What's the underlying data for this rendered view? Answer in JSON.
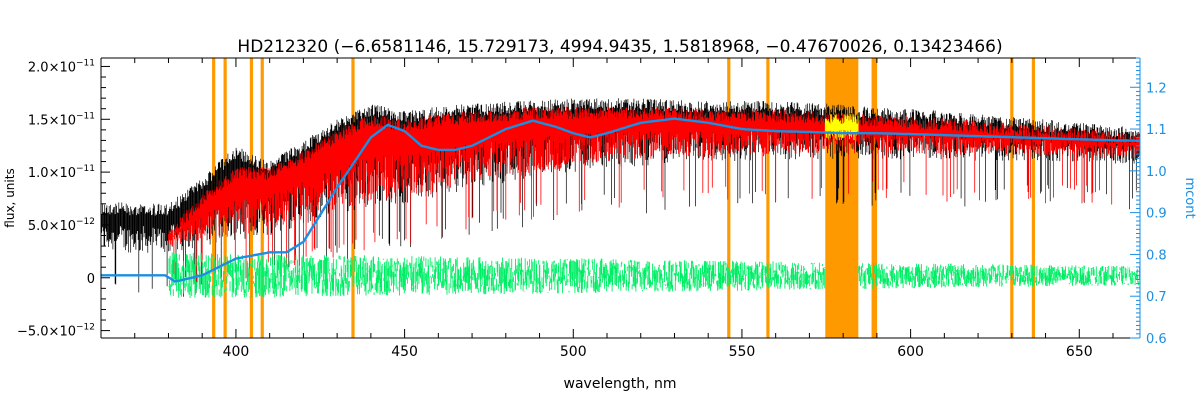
{
  "chart_data": {
    "type": "line",
    "title": "HD212320    (−6.6581146, 15.729173, 4994.9435, 1.5818968, −0.47670026, 0.13423466)",
    "xlabel": "wavelength, nm",
    "ylabel": "flux, units",
    "y2label": "mcont",
    "xlim": [
      360,
      668
    ],
    "ylim": [
      -0.57,
      2.08
    ],
    "ylim_unit_note": "×10^-11",
    "y2lim": [
      0.6,
      1.27
    ],
    "x_ticks": [
      400,
      450,
      500,
      550,
      600,
      650
    ],
    "x_tick_labels": [
      "400",
      "450",
      "500",
      "550",
      "600",
      "650"
    ],
    "y_ticks": [
      -0.5,
      0,
      0.5,
      1.0,
      1.5,
      2.0
    ],
    "y_tick_labels": [
      {
        "mantissa": "−5.0",
        "exp": "−12"
      },
      {
        "mantissa": "0",
        "exp": ""
      },
      {
        "mantissa": "5.0",
        "exp": "−12"
      },
      {
        "mantissa": "1.0",
        "exp": "−11"
      },
      {
        "mantissa": "1.5",
        "exp": "−11"
      },
      {
        "mantissa": "2.0",
        "exp": "−11"
      }
    ],
    "y2_ticks": [
      0.6,
      0.7,
      0.8,
      0.9,
      1.0,
      1.1,
      1.2
    ],
    "y2_tick_labels": [
      "0.6",
      "0.7",
      "0.8",
      "0.9",
      "1.0",
      "1.1",
      "1.2"
    ],
    "colors": {
      "observed": "#000000",
      "model": "#ff0000",
      "residual": "#00ee66",
      "continuum": "#1a8fe3",
      "masked": "#ff9900",
      "masked_model": "#ffff00",
      "right_axis": "#1a8fe3"
    },
    "series": [
      {
        "kind": "observed-flux-envelope",
        "x": [
          360,
          380,
          390,
          400,
          410,
          420,
          430,
          440,
          450,
          460,
          470,
          480,
          490,
          500,
          510,
          520,
          530,
          540,
          550,
          560,
          570,
          580,
          590,
          600,
          610,
          620,
          630,
          640,
          650,
          660,
          668
        ],
        "upper": [
          0.72,
          0.7,
          0.95,
          1.25,
          1.1,
          1.3,
          1.5,
          1.65,
          1.58,
          1.62,
          1.65,
          1.67,
          1.68,
          1.7,
          1.7,
          1.7,
          1.69,
          1.68,
          1.68,
          1.67,
          1.66,
          1.64,
          1.62,
          1.6,
          1.58,
          1.55,
          1.52,
          1.5,
          1.47,
          1.44,
          1.42
        ],
        "lower": [
          0.25,
          0.22,
          0.3,
          0.35,
          0.4,
          0.5,
          0.6,
          0.65,
          0.7,
          0.75,
          0.85,
          0.9,
          0.95,
          1.0,
          1.05,
          1.05,
          1.1,
          1.1,
          1.1,
          1.12,
          1.12,
          1.12,
          1.12,
          1.12,
          1.12,
          1.1,
          1.1,
          1.1,
          1.1,
          1.08,
          1.08
        ]
      },
      {
        "kind": "model-flux-envelope",
        "x": [
          380,
          390,
          400,
          410,
          420,
          430,
          440,
          450,
          460,
          470,
          480,
          490,
          500,
          510,
          520,
          530,
          540,
          550,
          560,
          570,
          580,
          590,
          600,
          610,
          620,
          630,
          640,
          650,
          660,
          668
        ],
        "upper": [
          0.45,
          0.8,
          1.05,
          1.05,
          1.2,
          1.4,
          1.55,
          1.5,
          1.55,
          1.58,
          1.6,
          1.62,
          1.62,
          1.62,
          1.62,
          1.61,
          1.6,
          1.6,
          1.59,
          1.58,
          1.56,
          1.55,
          1.53,
          1.51,
          1.49,
          1.46,
          1.44,
          1.41,
          1.39,
          1.38
        ],
        "lower": [
          0.3,
          0.35,
          0.4,
          0.45,
          0.55,
          0.65,
          0.7,
          0.75,
          0.8,
          0.9,
          0.95,
          1.0,
          1.05,
          1.1,
          1.1,
          1.15,
          1.15,
          1.15,
          1.17,
          1.17,
          1.17,
          1.17,
          1.17,
          1.17,
          1.15,
          1.15,
          1.15,
          1.15,
          1.13,
          1.13
        ]
      },
      {
        "kind": "continuum",
        "axis": "right",
        "x": [
          360,
          379,
          382,
          390,
          400,
          410,
          415,
          420,
          430,
          440,
          445,
          450,
          455,
          460,
          465,
          470,
          480,
          488,
          495,
          500,
          505,
          510,
          520,
          530,
          540,
          550,
          560,
          570,
          580,
          590,
          600,
          620,
          640,
          660,
          668
        ],
        "y": [
          0.75,
          0.75,
          0.735,
          0.75,
          0.79,
          0.805,
          0.805,
          0.83,
          0.96,
          1.08,
          1.11,
          1.095,
          1.06,
          1.05,
          1.05,
          1.06,
          1.1,
          1.12,
          1.105,
          1.09,
          1.08,
          1.09,
          1.115,
          1.125,
          1.115,
          1.1,
          1.095,
          1.093,
          1.09,
          1.09,
          1.088,
          1.083,
          1.078,
          1.073,
          1.072
        ]
      },
      {
        "kind": "residual-band",
        "x_range": [
          380,
          668
        ],
        "center": 0.02,
        "spread_blue": 0.22,
        "spread_red": 0.09
      }
    ],
    "masked_lines_nm": [
      393.4,
      396.8,
      404.6,
      407.8,
      434.7,
      546.1,
      557.7,
      588.9,
      589.6,
      630.0,
      636.4
    ],
    "masked_regions_nm": [
      [
        574.7,
        584.5
      ]
    ],
    "grid": false,
    "legend": "none"
  }
}
